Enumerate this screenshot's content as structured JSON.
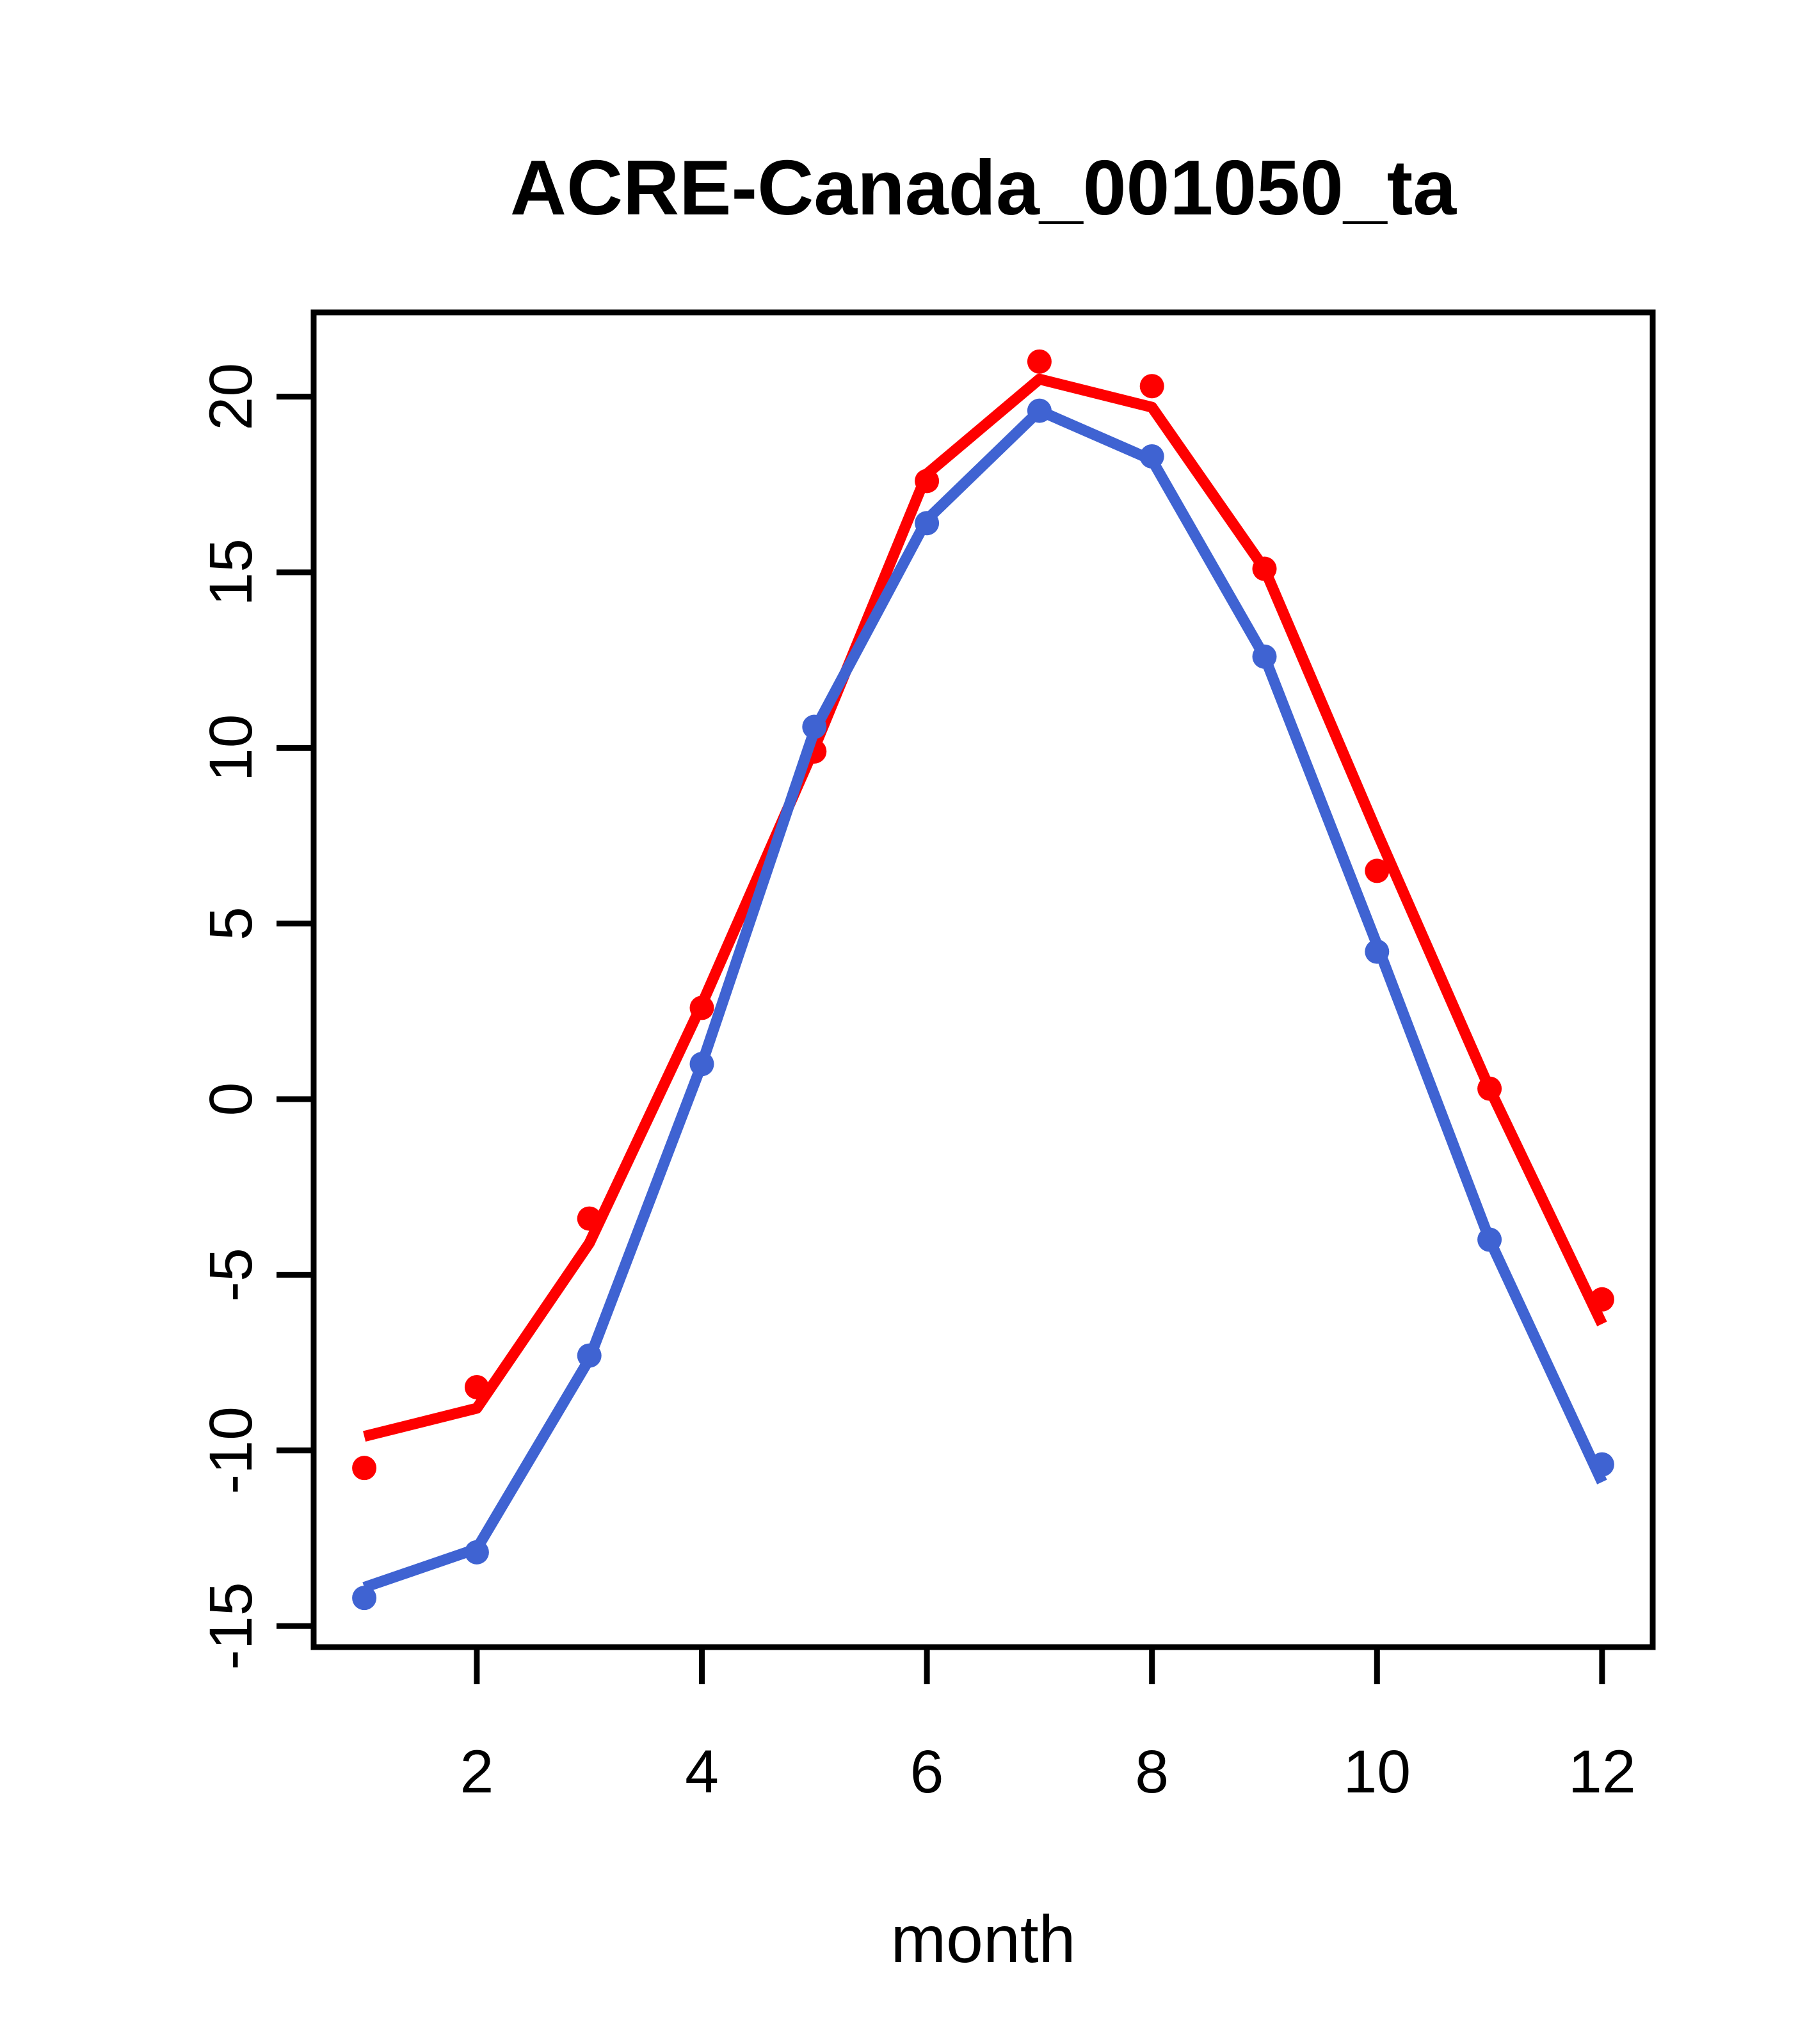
{
  "title": "ACRE-Canada_001050_ta",
  "colors": {
    "red_series": "#fe0000",
    "blue_series": "#3f63d2",
    "axis": "#000000",
    "background": "#ffffff"
  },
  "chart_data": {
    "type": "line",
    "title": "ACRE-Canada_001050_ta",
    "xlabel": "month",
    "ylabel": "",
    "x": [
      1,
      2,
      3,
      4,
      5,
      6,
      7,
      8,
      9,
      10,
      11,
      12
    ],
    "xticks": [
      2,
      4,
      6,
      8,
      10,
      12
    ],
    "yticks": [
      -15,
      -10,
      -5,
      0,
      5,
      10,
      15,
      20
    ],
    "xlim": [
      0.55,
      12.45
    ],
    "ylim": [
      -15.6,
      22.4
    ],
    "grid": false,
    "legend_position": "none",
    "series": [
      {
        "name": "red-line",
        "draw": "line",
        "color": "#fe0000",
        "values": [
          -9.6,
          -8.8,
          -4.1,
          2.7,
          10.0,
          17.8,
          20.5,
          19.7,
          15.1,
          7.6,
          0.3,
          -6.4
        ]
      },
      {
        "name": "red-points",
        "draw": "points",
        "color": "#fe0000",
        "values": [
          -10.5,
          -8.2,
          -3.4,
          2.6,
          9.9,
          17.6,
          21.0,
          20.3,
          15.1,
          6.5,
          0.3,
          -5.7
        ]
      },
      {
        "name": "blue-line",
        "draw": "line",
        "color": "#3f63d2",
        "values": [
          -13.9,
          -12.8,
          -7.4,
          1.0,
          10.5,
          16.5,
          19.6,
          18.2,
          12.6,
          4.4,
          -4.0,
          -10.9
        ]
      },
      {
        "name": "blue-points",
        "draw": "points",
        "color": "#3f63d2",
        "values": [
          -14.2,
          -12.9,
          -7.3,
          1.0,
          10.6,
          16.4,
          19.6,
          18.3,
          12.6,
          4.2,
          -4.0,
          -10.4
        ]
      }
    ]
  }
}
